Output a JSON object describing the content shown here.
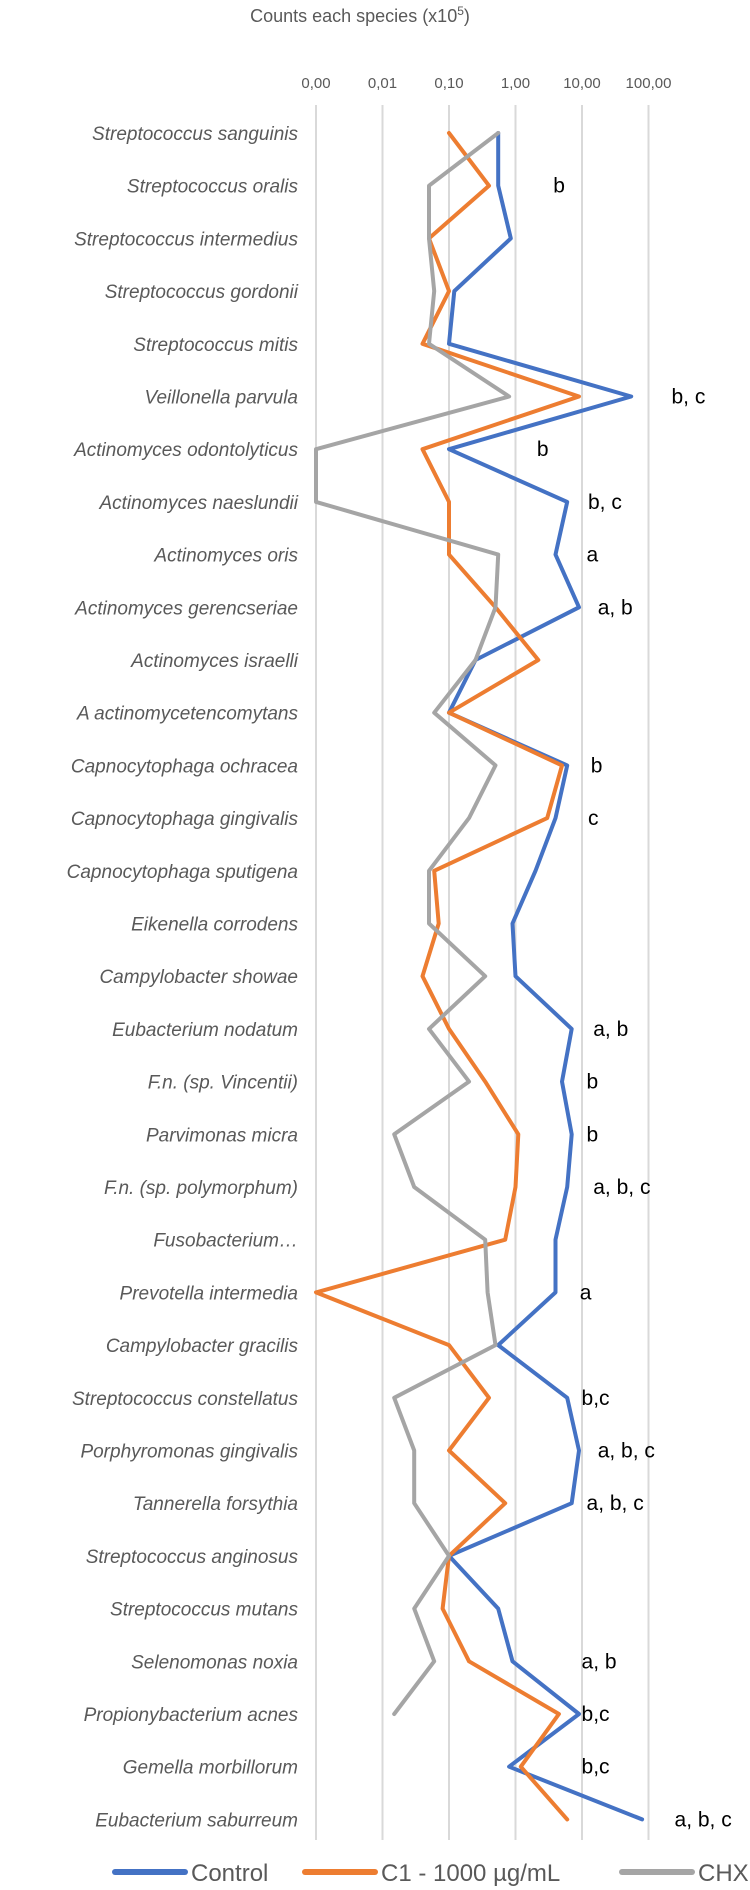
{
  "chart_data": {
    "type": "line",
    "orientation": "vertical-categories",
    "title": "",
    "xlabel_main": "Counts each species  (x10",
    "xlabel_sup": "5",
    "xlabel_close": ")",
    "x_scale": "log",
    "x_ticks": [
      {
        "value": 0.001,
        "label": "0,00"
      },
      {
        "value": 0.01,
        "label": "0,01"
      },
      {
        "value": 0.1,
        "label": "0,10"
      },
      {
        "value": 1,
        "label": "1,00"
      },
      {
        "value": 10,
        "label": "10,00"
      },
      {
        "value": 100,
        "label": "100,00"
      }
    ],
    "xlim": [
      0.001,
      100
    ],
    "grid": true,
    "legend_position": "bottom",
    "categories": [
      "Streptococcus sanguinis",
      "Streptococcus oralis",
      "Streptococcus intermedius",
      "Streptococcus gordonii",
      "Streptococcus mitis",
      "Veillonella parvula",
      "Actinomyces odontolyticus",
      "Actinomyces naeslundii",
      "Actinomyces oris",
      "Actinomyces gerencseriae",
      "Actinomyces israelli",
      "A actinomycetencomytans",
      "Capnocytophaga ochracea",
      "Capnocytophaga gingivalis",
      "Capnocytophaga sputigena",
      "Eikenella corrodens",
      "Campylobacter showae",
      "Eubacterium nodatum",
      "F.n. (sp. Vincentii)",
      "Parvimonas micra",
      "F.n. (sp. polymorphum)",
      "Fusobacterium…",
      "Prevotella intermedia",
      "Campylobacter gracilis",
      "Streptococcus constellatus",
      "Porphyromonas gingivalis",
      "Tannerella forsythia",
      "Streptococcus anginosus",
      "Streptococcus mutans",
      "Selenomonas noxia",
      "Propionybacterium acnes",
      "Gemella morbillorum",
      "Eubacterium saburreum"
    ],
    "series": [
      {
        "name": "Control",
        "color": "#4472C4",
        "values": [
          0.55,
          0.55,
          0.85,
          0.12,
          0.1,
          55,
          0.1,
          6,
          4,
          9,
          0.25,
          0.1,
          6,
          4,
          2,
          0.9,
          1,
          7,
          5,
          7,
          6,
          4,
          4,
          0.55,
          6,
          9,
          7,
          0.1,
          0.55,
          0.9,
          9,
          0.8,
          80
        ]
      },
      {
        "name": "C1  - 1000 µg/mL",
        "color": "#ED7D31",
        "values": [
          0.1,
          0.4,
          0.05,
          0.1,
          0.04,
          9,
          0.04,
          0.1,
          0.1,
          0.5,
          2.2,
          0.1,
          5,
          3,
          0.06,
          0.07,
          0.04,
          0.1,
          0.35,
          1.1,
          1,
          0.7,
          0.001,
          0.1,
          0.4,
          0.1,
          0.7,
          0.1,
          0.08,
          0.2,
          4.5,
          1.2,
          6
        ]
      },
      {
        "name": "CHX",
        "color": "#A5A5A5",
        "values": [
          0.55,
          0.05,
          0.05,
          0.06,
          0.05,
          0.8,
          0.001,
          0.001,
          0.55,
          0.5,
          0.25,
          0.06,
          0.5,
          0.2,
          0.05,
          0.05,
          0.35,
          0.05,
          0.2,
          0.015,
          0.03,
          0.35,
          0.38,
          0.5,
          0.015,
          0.03,
          0.03,
          0.1,
          0.03,
          0.06,
          0.015,
          null,
          null
        ]
      }
    ],
    "annotations": [
      {
        "category_index": 1,
        "text": "b",
        "x": 3
      },
      {
        "category_index": 5,
        "text": "b, c",
        "x": 180
      },
      {
        "category_index": 6,
        "text": "b",
        "x": 1.7
      },
      {
        "category_index": 7,
        "text": "b, c",
        "x": 10
      },
      {
        "category_index": 8,
        "text": "a",
        "x": 9.5
      },
      {
        "category_index": 9,
        "text": "a, b",
        "x": 14
      },
      {
        "category_index": 12,
        "text": "b",
        "x": 11
      },
      {
        "category_index": 13,
        "text": "c",
        "x": 10
      },
      {
        "category_index": 17,
        "text": "a, b",
        "x": 12
      },
      {
        "category_index": 18,
        "text": "b",
        "x": 9.5
      },
      {
        "category_index": 19,
        "text": "b",
        "x": 9.5
      },
      {
        "category_index": 20,
        "text": "a, b, c",
        "x": 12
      },
      {
        "category_index": 22,
        "text": "a",
        "x": 7.5
      },
      {
        "category_index": 24,
        "text": "b,c",
        "x": 8
      },
      {
        "category_index": 25,
        "text": "a, b, c",
        "x": 14
      },
      {
        "category_index": 26,
        "text": "a, b, c",
        "x": 9.5
      },
      {
        "category_index": 29,
        "text": "a, b",
        "x": 8
      },
      {
        "category_index": 30,
        "text": "b,c",
        "x": 8
      },
      {
        "category_index": 31,
        "text": "b,c",
        "x": 8
      },
      {
        "category_index": 32,
        "text": "a, b, c",
        "x": 200
      }
    ]
  }
}
